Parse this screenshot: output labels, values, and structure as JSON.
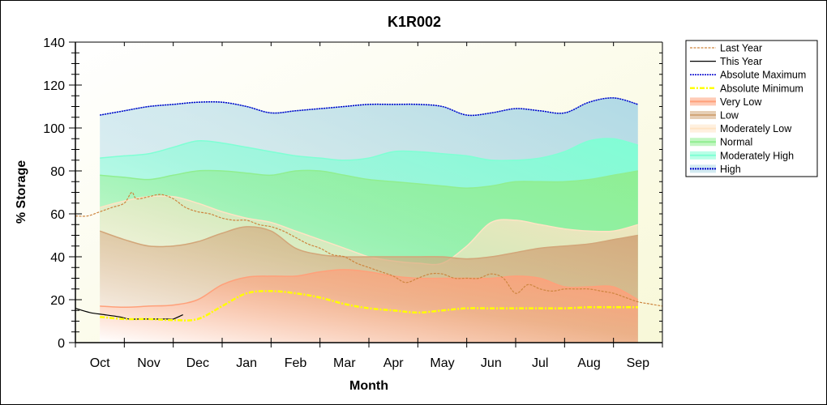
{
  "chart_data": {
    "type": "area",
    "title": "K1R002",
    "xlabel": "Month",
    "ylabel": "% Storage",
    "ylim": [
      0,
      140
    ],
    "yticks": [
      0,
      20,
      40,
      60,
      80,
      100,
      120,
      140
    ],
    "categories": [
      "Oct",
      "Nov",
      "Dec",
      "Jan",
      "Feb",
      "Mar",
      "Apr",
      "May",
      "Jun",
      "Jul",
      "Aug",
      "Sep"
    ],
    "x_unit": "months from start of Oct",
    "band_x": [
      0.5,
      1,
      1.5,
      2,
      2.5,
      3,
      3.5,
      4,
      4.5,
      5,
      5.5,
      6,
      6.5,
      7,
      7.5,
      8,
      8.5,
      9,
      9.5,
      10,
      10.5,
      11,
      11.5
    ],
    "bands": [
      {
        "name": "Very Low",
        "color": "#ffa07a",
        "upper": [
          17,
          16.5,
          17,
          17.5,
          20,
          27,
          30.5,
          31,
          31,
          33,
          34,
          33,
          31,
          30,
          30,
          30,
          30,
          31,
          30,
          26,
          26,
          26,
          20
        ]
      },
      {
        "name": "Low",
        "color": "#d2a679",
        "upper": [
          52,
          48,
          45,
          45,
          47,
          51,
          54,
          52,
          44,
          41,
          40,
          40,
          40,
          40,
          40,
          39,
          40,
          42,
          44,
          45,
          46,
          48,
          50
        ]
      },
      {
        "name": "Moderately Low",
        "color": "#ffe4c4",
        "upper": [
          63,
          66,
          68,
          68,
          65,
          61,
          58,
          56,
          52,
          48,
          44,
          40,
          38,
          37,
          37,
          45,
          56,
          57,
          55,
          53,
          52,
          52,
          55
        ]
      },
      {
        "name": "Normal",
        "color": "#90ee90",
        "upper": [
          78,
          77,
          76,
          78,
          80,
          80,
          79,
          78,
          80,
          80,
          78,
          76,
          75,
          74,
          73,
          72,
          73,
          75,
          75,
          75,
          76,
          78,
          80
        ]
      },
      {
        "name": "Moderately High",
        "color": "#7fffd4",
        "upper": [
          86,
          87,
          88,
          91,
          94,
          93,
          91,
          89,
          87,
          86,
          85,
          86,
          89,
          89,
          88,
          87,
          85,
          85,
          86,
          89,
          94,
          95,
          92
        ]
      },
      {
        "name": "High",
        "color": "#add8e6",
        "upper": [
          106,
          108,
          110,
          111,
          112,
          112,
          110,
          107,
          108,
          109,
          110,
          111,
          111,
          111,
          110,
          106,
          107,
          109,
          108,
          107,
          112,
          114,
          111
        ]
      }
    ],
    "series": [
      {
        "name": "Last Year",
        "color": "#cd853f",
        "style": "dashed",
        "x": [
          0,
          0.25,
          0.5,
          0.75,
          1,
          1.15,
          1.25,
          1.5,
          1.75,
          2,
          2.25,
          2.5,
          2.75,
          3,
          3.25,
          3.5,
          3.75,
          4,
          4.25,
          4.5,
          4.75,
          5,
          5.25,
          5.5,
          5.75,
          6,
          6.25,
          6.5,
          6.75,
          7,
          7.25,
          7.5,
          7.75,
          8,
          8.25,
          8.5,
          8.75,
          9,
          9.25,
          9.5,
          9.75,
          10,
          10.25,
          10.5,
          10.75,
          11,
          11.25,
          11.5,
          11.75,
          12
        ],
        "values": [
          59,
          59,
          61,
          63,
          65,
          70,
          67,
          68,
          69,
          67,
          63,
          61,
          60,
          58,
          57,
          57,
          55,
          54,
          52,
          49,
          46,
          44,
          41,
          40,
          37,
          35,
          33,
          31,
          28,
          30,
          32,
          32,
          30,
          30,
          30,
          32,
          30,
          23,
          27,
          25,
          24,
          25,
          25,
          25,
          24,
          23,
          21,
          19,
          18,
          17
        ]
      },
      {
        "name": "This Year",
        "color": "#000000",
        "style": "solid",
        "x": [
          0,
          0.3,
          0.6,
          0.9,
          1.1,
          1.3,
          1.6,
          1.9,
          2.0,
          2.2
        ],
        "values": [
          16,
          14,
          13,
          12,
          11,
          11,
          11,
          11,
          11,
          13
        ]
      },
      {
        "name": "Absolute Maximum",
        "color": "#0000cd",
        "style": "dotted",
        "x": [
          0.5,
          1,
          1.5,
          2,
          2.5,
          3,
          3.5,
          4,
          4.5,
          5,
          5.5,
          6,
          6.5,
          7,
          7.5,
          8,
          8.5,
          9,
          9.5,
          10,
          10.5,
          11,
          11.5
        ],
        "values": [
          106,
          108,
          110,
          111,
          112,
          112,
          110,
          107,
          108,
          109,
          110,
          111,
          111,
          111,
          110,
          106,
          107,
          109,
          108,
          107,
          112,
          114,
          111
        ]
      },
      {
        "name": "Absolute Minimum",
        "color": "#ffff00",
        "style": "dashdot",
        "x": [
          0.5,
          1,
          1.5,
          2,
          2.5,
          3,
          3.5,
          4,
          4.5,
          5,
          5.5,
          6,
          6.5,
          7,
          7.5,
          8,
          8.5,
          9,
          9.5,
          10,
          10.5,
          11,
          11.5
        ],
        "values": [
          12,
          11,
          11,
          10.5,
          11,
          17,
          23,
          24,
          23,
          21,
          18,
          16,
          15,
          14,
          15,
          16,
          16,
          16,
          16,
          16,
          16.5,
          16.5,
          16.5
        ]
      }
    ],
    "legend": [
      "Last Year",
      "This Year",
      "Absolute Maximum",
      "Absolute Minimum",
      "Very Low",
      "Low",
      "Moderately Low",
      "Normal",
      "Moderately High",
      "High"
    ],
    "legend_position": "right",
    "grid": false
  }
}
